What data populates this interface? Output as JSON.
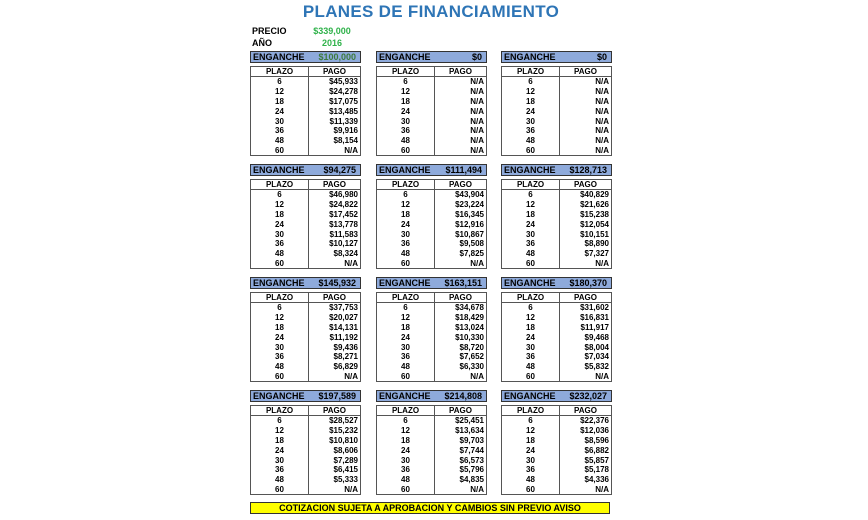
{
  "title": "PLANES DE FINANCIAMIENTO",
  "precio": {
    "label": "PRECIO",
    "value": "$339,000"
  },
  "anio": {
    "label": "AÑO",
    "value": "2016"
  },
  "columns": {
    "plazo": "PLAZO",
    "pago": "PAGO"
  },
  "enganche_label": "ENGANCHE",
  "plazos": [
    "6",
    "12",
    "18",
    "24",
    "30",
    "36",
    "48",
    "60"
  ],
  "plans": [
    {
      "enganche": "$100,000",
      "highlight": true,
      "pagos": [
        "$45,933",
        "$24,278",
        "$17,075",
        "$13,485",
        "$11,339",
        "$9,916",
        "$8,154",
        "N/A"
      ]
    },
    {
      "enganche": "$0",
      "pagos": [
        "N/A",
        "N/A",
        "N/A",
        "N/A",
        "N/A",
        "N/A",
        "N/A",
        "N/A"
      ]
    },
    {
      "enganche": "$0",
      "pagos": [
        "N/A",
        "N/A",
        "N/A",
        "N/A",
        "N/A",
        "N/A",
        "N/A",
        "N/A"
      ]
    },
    {
      "enganche": "$94,275",
      "pagos": [
        "$46,980",
        "$24,822",
        "$17,452",
        "$13,778",
        "$11,583",
        "$10,127",
        "$8,324",
        "N/A"
      ]
    },
    {
      "enganche": "$111,494",
      "pagos": [
        "$43,904",
        "$23,224",
        "$16,345",
        "$12,916",
        "$10,867",
        "$9,508",
        "$7,825",
        "N/A"
      ]
    },
    {
      "enganche": "$128,713",
      "pagos": [
        "$40,829",
        "$21,626",
        "$15,238",
        "$12,054",
        "$10,151",
        "$8,890",
        "$7,327",
        "N/A"
      ]
    },
    {
      "enganche": "$145,932",
      "pagos": [
        "$37,753",
        "$20,027",
        "$14,131",
        "$11,192",
        "$9,436",
        "$8,271",
        "$6,829",
        "N/A"
      ]
    },
    {
      "enganche": "$163,151",
      "pagos": [
        "$34,678",
        "$18,429",
        "$13,024",
        "$10,330",
        "$8,720",
        "$7,652",
        "$6,330",
        "N/A"
      ]
    },
    {
      "enganche": "$180,370",
      "pagos": [
        "$31,602",
        "$16,831",
        "$11,917",
        "$9,468",
        "$8,004",
        "$7,034",
        "$5,832",
        "N/A"
      ]
    },
    {
      "enganche": "$197,589",
      "pagos": [
        "$28,527",
        "$15,232",
        "$10,810",
        "$8,606",
        "$7,289",
        "$6,415",
        "$5,333",
        "N/A"
      ]
    },
    {
      "enganche": "$214,808",
      "pagos": [
        "$25,451",
        "$13,634",
        "$9,703",
        "$7,744",
        "$6,573",
        "$5,796",
        "$4,835",
        "N/A"
      ]
    },
    {
      "enganche": "$232,027",
      "pagos": [
        "$22,376",
        "$12,036",
        "$8,596",
        "$6,882",
        "$5,857",
        "$5,178",
        "$4,336",
        "N/A"
      ]
    }
  ],
  "footer": "COTIZACION SUJETA A APROBACION Y CAMBIOS SIN PREVIO AVISO",
  "colors": {
    "title": "#2e75b6",
    "header_bg": "#8eaadb",
    "price": "#2fb24a",
    "footer_bg": "#ffff00"
  }
}
